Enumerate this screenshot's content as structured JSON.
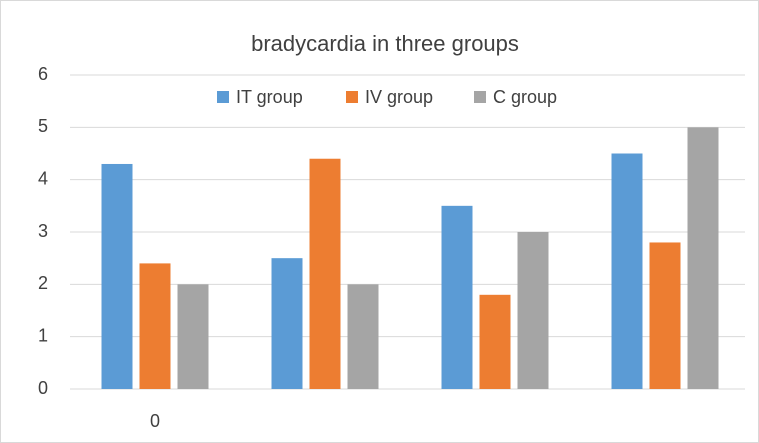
{
  "chart_data": {
    "type": "bar",
    "title": "bradycardia in three groups",
    "categories": [
      "0",
      null,
      null,
      null
    ],
    "series": [
      {
        "name": "IT  group",
        "color": "#5b9bd5",
        "values": [
          4.3,
          2.5,
          3.5,
          4.5
        ]
      },
      {
        "name": "IV group",
        "color": "#ed7d31",
        "values": [
          2.4,
          4.4,
          1.8,
          2.8
        ]
      },
      {
        "name": "C group",
        "color": "#a5a5a5",
        "values": [
          2,
          2,
          3,
          5
        ]
      }
    ],
    "ylim": [
      0,
      6
    ],
    "yticks": [
      0,
      1,
      2,
      3,
      4,
      5,
      6
    ],
    "grid": true,
    "legend": "top"
  }
}
